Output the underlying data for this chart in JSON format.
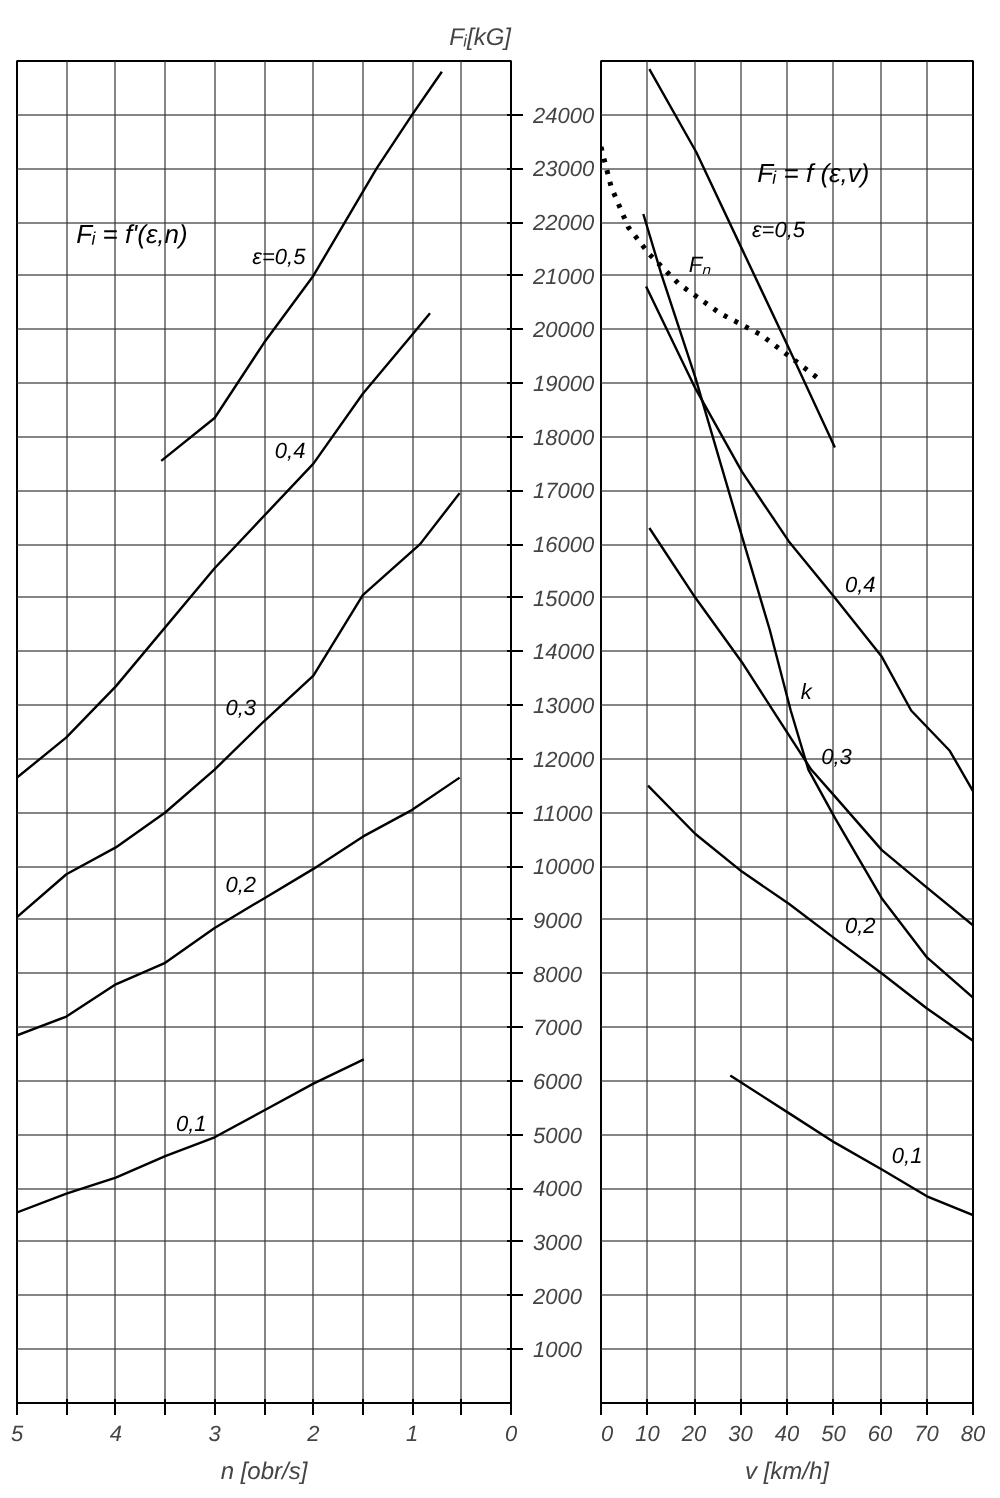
{
  "chart_data": [
    {
      "type": "line",
      "ylabel": "Fᵢ[kG]",
      "xlabel": "n [obr/s]",
      "annotations": [
        "Fᵢ = f'(ε,n)"
      ],
      "xlim": [
        5,
        0
      ],
      "ylim": [
        0,
        25000
      ],
      "grid": true,
      "xticks": [
        5,
        {
          "value": 4.5,
          "label": null
        },
        4,
        {
          "value": 3.5,
          "label": null
        },
        3,
        {
          "value": 2.5,
          "label": null
        },
        2,
        {
          "value": 1.5,
          "label": null
        },
        1,
        {
          "value": 0.5,
          "label": null
        },
        0
      ],
      "yticks": [
        1000,
        2000,
        3000,
        4000,
        5000,
        6000,
        7000,
        8000,
        9000,
        10000,
        11000,
        12000,
        13000,
        14000,
        15000,
        16000,
        17000,
        18000,
        19000,
        20000,
        21000,
        22000,
        23000,
        24000
      ],
      "series": [
        {
          "name": "ε=0,5",
          "color": "#000000",
          "x": [
            3.54,
            3.0,
            2.5,
            2.0,
            1.36,
            1.0,
            0.7
          ],
          "values": [
            17550,
            18350,
            19750,
            21000,
            23000,
            24000,
            24800
          ]
        },
        {
          "name": "0,4",
          "color": "#000000",
          "x": [
            5,
            4.5,
            4,
            3,
            2,
            1.5,
            1,
            0.82
          ],
          "values": [
            11650,
            12400,
            13350,
            15550,
            17500,
            18800,
            19900,
            20300
          ]
        },
        {
          "name": "0,3",
          "color": "#000000",
          "x": [
            5,
            4.5,
            4,
            3.5,
            3,
            2.5,
            2,
            1.5,
            0.92,
            0.52
          ],
          "values": [
            9050,
            9850,
            10350,
            11000,
            11800,
            12700,
            13550,
            15050,
            16000,
            16950
          ]
        },
        {
          "name": "0,2",
          "color": "#000000",
          "x": [
            5,
            4.5,
            4,
            3.5,
            3,
            2.5,
            2,
            1.5,
            1,
            0.52
          ],
          "values": [
            6850,
            7200,
            7800,
            8200,
            8850,
            9400,
            9950,
            10550,
            11050,
            11650
          ]
        },
        {
          "name": "0,1",
          "color": "#000000",
          "x": [
            5,
            4.5,
            4,
            3.5,
            3,
            2.5,
            2,
            1.49
          ],
          "values": [
            3550,
            3900,
            4200,
            4600,
            4950,
            5450,
            5950,
            6400
          ]
        }
      ]
    },
    {
      "type": "line",
      "xlabel": "v [km/h]",
      "annotations": [
        "Fᵢ = f (ε,v)"
      ],
      "tick_labels": "x",
      "xlim": [
        0,
        80
      ],
      "ylim": [
        0,
        25000
      ],
      "grid": true,
      "xticks": [
        0,
        10,
        20,
        30,
        40,
        50,
        60,
        70,
        80
      ],
      "yticks": [
        1000,
        2000,
        3000,
        4000,
        5000,
        6000,
        7000,
        8000,
        9000,
        10000,
        11000,
        12000,
        13000,
        14000,
        15000,
        16000,
        17000,
        18000,
        19000,
        20000,
        21000,
        22000,
        23000,
        24000
      ],
      "series": [
        {
          "name": "ε=0,5",
          "color": "#000000",
          "x": [
            10.4,
            20.5,
            30.3,
            40.4,
            50.3
          ],
          "values": [
            24850,
            23300,
            21500,
            19650,
            17800
          ]
        },
        {
          "name": "Fₙ",
          "color": "#000000",
          "line_style": "dotted",
          "x": [
            0,
            2.2,
            5.9,
            10.4,
            16.7,
            25.6,
            34.4,
            42,
            46.5
          ],
          "values": [
            23400,
            22650,
            21900,
            21400,
            20850,
            20300,
            19900,
            19400,
            19100
          ]
        },
        {
          "name": "0,4",
          "color": "#000000",
          "x": [
            9.7,
            20.3,
            30.3,
            40.4,
            50.3,
            60.4,
            66.7,
            75,
            80
          ],
          "values": [
            20800,
            18900,
            17350,
            16050,
            15000,
            13900,
            12900,
            12150,
            11400
          ]
        },
        {
          "name": "k",
          "color": "#000000",
          "x": [
            9.1,
            12.9,
            20.3,
            30.3,
            36.3,
            40.8,
            44.6,
            50.3,
            60.4,
            70.1,
            80
          ],
          "values": [
            22150,
            21050,
            19100,
            16150,
            14400,
            12900,
            11800,
            10900,
            9400,
            8300,
            7550
          ]
        },
        {
          "name": "0,3",
          "color": "#000000",
          "x": [
            10.4,
            20.3,
            30.3,
            37,
            45.2,
            50.3,
            60.4,
            70.1,
            80
          ],
          "values": [
            16300,
            15000,
            13800,
            12900,
            11800,
            11300,
            10300,
            9600,
            8900
          ]
        },
        {
          "name": "0,2",
          "color": "#000000",
          "x": [
            10.1,
            20.3,
            30.3,
            40.4,
            50.3,
            60.4,
            70.1,
            80
          ],
          "values": [
            11500,
            10600,
            9900,
            9300,
            8650,
            8000,
            7350,
            6750
          ]
        },
        {
          "name": "0,1",
          "color": "#000000",
          "x": [
            27.8,
            40.4,
            50.3,
            60.4,
            70.1,
            80
          ],
          "values": [
            6100,
            5400,
            4850,
            4350,
            3850,
            3500
          ]
        }
      ]
    }
  ]
}
